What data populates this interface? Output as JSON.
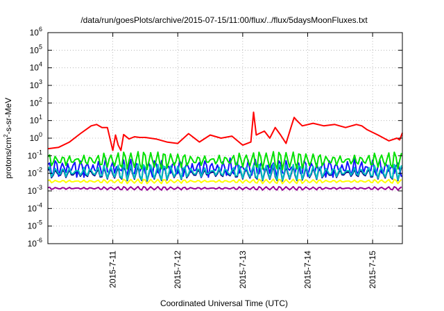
{
  "chart_data": {
    "type": "line",
    "title": "/data/run/goesPlots/archive/2015-07-15/11:00/flux/../flux/5daysMoonFluxes.txt",
    "xlabel": "Coordinated Universal Time (UTC)",
    "ylabel": {
      "prefix": "protons/cm",
      "sup": "2",
      "suffix": "-s-sr-MeV"
    },
    "yscale": "log",
    "ylim": [
      1e-06,
      1000000.0
    ],
    "y_ticks": [
      {
        "value": 1e-06,
        "base": "10",
        "exp": "-6"
      },
      {
        "value": 1e-05,
        "base": "10",
        "exp": "-5"
      },
      {
        "value": 0.0001,
        "base": "10",
        "exp": "-4"
      },
      {
        "value": 0.001,
        "base": "10",
        "exp": "-3"
      },
      {
        "value": 0.01,
        "base": "10",
        "exp": "-2"
      },
      {
        "value": 0.1,
        "base": "10",
        "exp": "-1"
      },
      {
        "value": 1,
        "base": "10",
        "exp": "0"
      },
      {
        "value": 10.0,
        "base": "10",
        "exp": "1"
      },
      {
        "value": 100.0,
        "base": "10",
        "exp": "2"
      },
      {
        "value": 1000.0,
        "base": "10",
        "exp": "3"
      },
      {
        "value": 10000.0,
        "base": "10",
        "exp": "4"
      },
      {
        "value": 100000.0,
        "base": "10",
        "exp": "5"
      },
      {
        "value": 1000000.0,
        "base": "10",
        "exp": "6"
      }
    ],
    "xlim": [
      "2015-07-10T00:00",
      "2015-07-15T11:00"
    ],
    "x_ticks": [
      {
        "value": "2015-07-11T00:00",
        "label": "2015-7-11"
      },
      {
        "value": "2015-07-12T00:00",
        "label": "2015-7-12"
      },
      {
        "value": "2015-07-13T00:00",
        "label": "2015-7-13"
      },
      {
        "value": "2015-07-14T00:00",
        "label": "2015-7-14"
      },
      {
        "value": "2015-07-15T00:00",
        "label": "2015-7-15"
      }
    ],
    "grid": true,
    "series": [
      {
        "color": "#ff0000",
        "pattern": "main",
        "x": [
          "2015-07-10T00:00",
          "2015-07-10T04:00",
          "2015-07-10T08:00",
          "2015-07-10T12:00",
          "2015-07-10T16:00",
          "2015-07-10T18:00",
          "2015-07-10T20:00",
          "2015-07-10T22:00",
          "2015-07-11T00:00",
          "2015-07-11T01:00",
          "2015-07-11T02:00",
          "2015-07-11T03:00",
          "2015-07-11T04:00",
          "2015-07-11T06:00",
          "2015-07-11T08:00",
          "2015-07-11T10:00",
          "2015-07-11T12:00",
          "2015-07-11T16:00",
          "2015-07-11T20:00",
          "2015-07-12T00:00",
          "2015-07-12T04:00",
          "2015-07-12T08:00",
          "2015-07-12T12:00",
          "2015-07-12T16:00",
          "2015-07-12T20:00",
          "2015-07-13T00:00",
          "2015-07-13T03:00",
          "2015-07-13T04:00",
          "2015-07-13T05:00",
          "2015-07-13T06:00",
          "2015-07-13T08:00",
          "2015-07-13T10:00",
          "2015-07-13T12:00",
          "2015-07-13T14:00",
          "2015-07-13T16:00",
          "2015-07-13T18:00",
          "2015-07-13T19:00",
          "2015-07-13T20:00",
          "2015-07-13T22:00",
          "2015-07-14T02:00",
          "2015-07-14T06:00",
          "2015-07-14T10:00",
          "2015-07-14T14:00",
          "2015-07-14T18:00",
          "2015-07-14T20:00",
          "2015-07-14T22:00",
          "2015-07-15T02:00",
          "2015-07-15T06:00",
          "2015-07-15T09:00",
          "2015-07-15T10:00",
          "2015-07-15T11:00"
        ],
        "y": [
          0.25,
          0.3,
          0.6,
          1.8,
          5,
          6,
          4,
          4,
          0.2,
          1.5,
          0.4,
          0.2,
          1.6,
          0.9,
          1.2,
          1.1,
          1.1,
          0.9,
          0.6,
          0.5,
          1.8,
          0.6,
          1.5,
          1.0,
          1.3,
          0.4,
          0.6,
          30,
          1.5,
          1.8,
          2.5,
          1.0,
          4,
          1.5,
          0.5,
          5,
          15,
          10,
          5,
          7,
          5,
          6,
          4,
          6,
          5,
          3,
          1.5,
          0.7,
          1.0,
          0.8,
          2.0
        ]
      },
      {
        "color": "#00e000",
        "pattern": "osc",
        "base": 0.055,
        "amp": 0.6,
        "period_h": 2.5
      },
      {
        "color": "#00bfbf",
        "pattern": "osc",
        "base": 0.012,
        "amp": 0.55,
        "period_h": 2.5
      },
      {
        "color": "#1010ff",
        "pattern": "osc",
        "base": 0.02,
        "amp": 0.6,
        "period_h": 2.3
      },
      {
        "color": "#00008b",
        "pattern": "osc",
        "base": 0.01,
        "amp": 0.5,
        "period_h": 2.5
      },
      {
        "color": "#ffff00",
        "pattern": "osc",
        "base": 0.0035,
        "amp": 0.15,
        "period_h": 2.5
      },
      {
        "color": "#990099",
        "pattern": "osc",
        "base": 0.0014,
        "amp": 0.12,
        "period_h": 2.5
      }
    ]
  }
}
